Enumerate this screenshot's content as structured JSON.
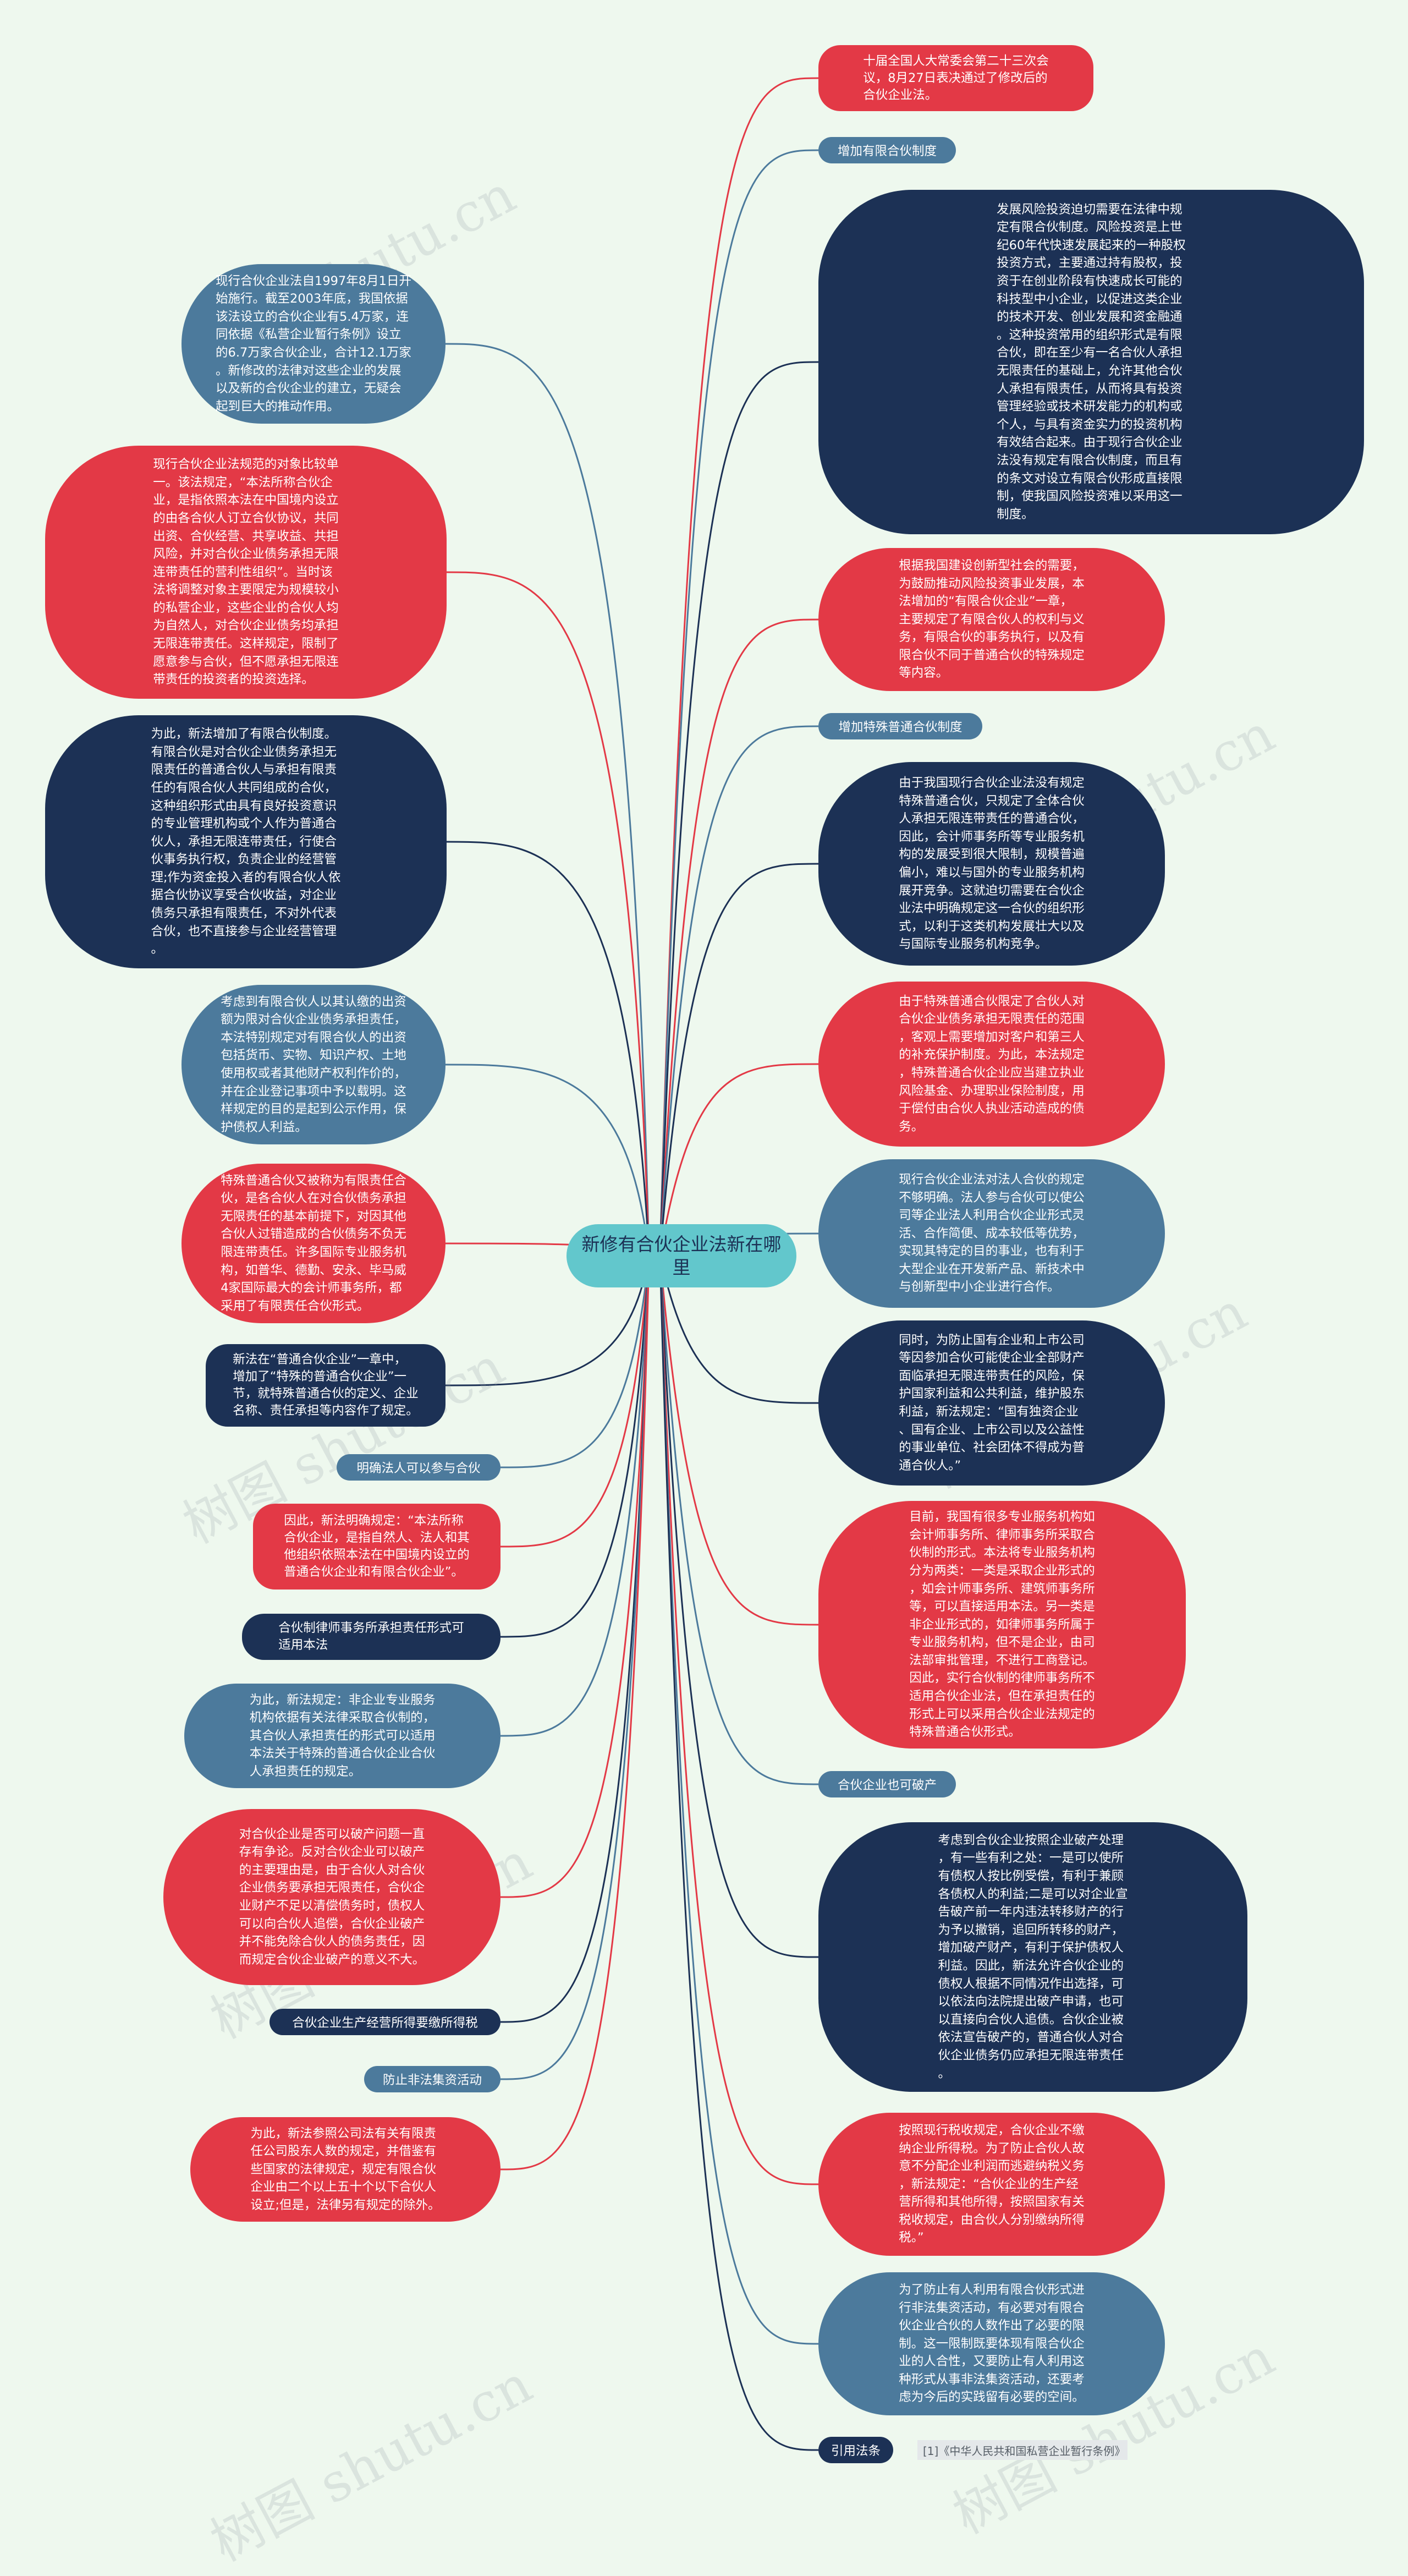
{
  "center": "新修有合伙企业法新在哪\n里",
  "watermark": "树图 shutu.cn",
  "right": [
    {
      "id": "r1",
      "style": "red",
      "text": "十届全国人大常委会第二十三次会\n议，8月27日表决通过了修改后的\n合伙企业法。"
    },
    {
      "id": "r2",
      "style": "tag-teal",
      "text": "增加有限合伙制度"
    },
    {
      "id": "r3",
      "style": "navy",
      "text": "发展风险投资迫切需要在法律中规\n定有限合伙制度。风险投资是上世\n纪60年代快速发展起来的一种股权\n投资方式，主要通过持有股权，投\n资于在创业阶段有快速成长可能的\n科技型中小企业，以促进这类企业\n的技术开发、创业发展和资金融通\n。这种投资常用的组织形式是有限\n合伙，即在至少有一名合伙人承担\n无限责任的基础上，允许其他合伙\n人承担有限责任，从而将具有投资\n管理经验或技术研发能力的机构或\n个人，与具有资金实力的投资机构\n有效结合起来。由于现行合伙企业\n法没有规定有限合伙制度，而且有\n的条文对设立有限合伙形成直接限\n制，使我国风险投资难以采用这一\n制度。"
    },
    {
      "id": "r4",
      "style": "red",
      "text": "根据我国建设创新型社会的需要，\n为鼓励推动风险投资事业发展，本\n法增加的“有限合伙企业”一章，\n主要规定了有限合伙人的权利与义\n务，有限合伙的事务执行，以及有\n限合伙不同于普通合伙的特殊规定\n等内容。"
    },
    {
      "id": "r5",
      "style": "tag-teal",
      "text": "增加特殊普通合伙制度"
    },
    {
      "id": "r6",
      "style": "navy",
      "text": "由于我国现行合伙企业法没有规定\n特殊普通合伙，只规定了全体合伙\n人承担无限连带责任的普通合伙，\n因此，会计师事务所等专业服务机\n构的发展受到很大限制，规模普遍\n偏小，难以与国外的专业服务机构\n展开竞争。这就迫切需要在合伙企\n业法中明确规定这一合伙的组织形\n式，以利于这类机构发展壮大以及\n与国际专业服务机构竞争。"
    },
    {
      "id": "r7",
      "style": "red",
      "text": "由于特殊普通合伙限定了合伙人对\n合伙企业债务承担无限责任的范围\n，客观上需要增加对客户和第三人\n的补充保护制度。为此，本法规定\n，特殊普通合伙企业应当建立执业\n风险基金、办理职业保险制度，用\n于偿付由合伙人执业活动造成的债\n务。"
    },
    {
      "id": "r8",
      "style": "teal",
      "text": "现行合伙企业法对法人合伙的规定\n不够明确。法人参与合伙可以使公\n司等企业法人利用合伙企业形式灵\n活、合作简便、成本较低等优势，\n实现其特定的目的事业，也有利于\n大型企业在开发新产品、新技术中\n与创新型中小企业进行合作。"
    },
    {
      "id": "r9",
      "style": "navy",
      "text": "同时，为防止国有企业和上市公司\n等因参加合伙可能使企业全部财产\n面临承担无限连带责任的风险，保\n护国家利益和公共利益，维护股东\n利益，新法规定：“国有独资企业\n、国有企业、上市公司以及公益性\n的事业单位、社会团体不得成为普\n通合伙人。”"
    },
    {
      "id": "r10",
      "style": "red",
      "text": "目前，我国有很多专业服务机构如\n会计师事务所、律师事务所采取合\n伙制的形式。本法将专业服务机构\n分为两类：一类是采取企业形式的\n，如会计师事务所、建筑师事务所\n等，可以直接适用本法。另一类是\n非企业形式的，如律师事务所属于\n专业服务机构，但不是企业，由司\n法部审批管理，不进行工商登记。\n因此，实行合伙制的律师事务所不\n适用合伙企业法，但在承担责任的\n形式上可以采用合伙企业法规定的\n特殊普通合伙形式。"
    },
    {
      "id": "r11",
      "style": "tag-teal",
      "text": "合伙企业也可破产"
    },
    {
      "id": "r12",
      "style": "navy",
      "text": "考虑到合伙企业按照企业破产处理\n，有一些有利之处：一是可以使所\n有债权人按比例受偿，有利于兼顾\n各债权人的利益;二是可以对企业宣\n告破产前一年内违法转移财产的行\n为予以撤销，追回所转移的财产，\n增加破产财产，有利于保护债权人\n利益。因此，新法允许合伙企业的\n债权人根据不同情况作出选择，可\n以依法向法院提出破产申请，也可\n以直接向合伙人追债。合伙企业被\n依法宣告破产的，普通合伙人对合\n伙企业债务仍应承担无限连带责任\n。"
    },
    {
      "id": "r13",
      "style": "red",
      "text": "按照现行税收规定，合伙企业不缴\n纳企业所得税。为了防止合伙人故\n意不分配企业利润而逃避纳税义务\n，新法规定：“合伙企业的生产经\n营所得和其他所得，按照国家有关\n税收规定，由合伙人分别缴纳所得\n税。”"
    },
    {
      "id": "r14",
      "style": "teal",
      "text": "为了防止有人利用有限合伙形式进\n行非法集资活动，有必要对有限合\n伙企业合伙的人数作出了必要的限\n制。这一限制既要体现有限合伙企\n业的人合性，又要防止有人利用这\n种形式从事非法集资活动，还要考\n虑为今后的实践留有必要的空间。"
    },
    {
      "id": "r15",
      "style": "tag-navy",
      "text": "引用法条"
    }
  ],
  "reference": "[1]《中华人民共和国私营企业暂行条例》",
  "left": [
    {
      "id": "l1",
      "style": "teal",
      "text": "现行合伙企业法自1997年8月1日开\n始施行。截至2003年底，我国依据\n该法设立的合伙企业有5.4万家，连\n同依据《私营企业暂行条例》设立\n的6.7万家合伙企业，合计12.1万家\n。新修改的法律对这些企业的发展\n以及新的合伙企业的建立，无疑会\n起到巨大的推动作用。"
    },
    {
      "id": "l2",
      "style": "red",
      "text": "现行合伙企业法规范的对象比较单\n一。该法规定，“本法所称合伙企\n业，是指依照本法在中国境内设立\n的由各合伙人订立合伙协议，共同\n出资、合伙经营、共享收益、共担\n风险，并对合伙企业债务承担无限\n连带责任的营利性组织”。当时该\n法将调整对象主要限定为规模较小\n的私营企业，这些企业的合伙人均\n为自然人，对合伙企业债务均承担\n无限连带责任。这样规定，限制了\n愿意参与合伙，但不愿承担无限连\n带责任的投资者的投资选择。"
    },
    {
      "id": "l3",
      "style": "navy",
      "text": "为此，新法增加了有限合伙制度。\n有限合伙是对合伙企业债务承担无\n限责任的普通合伙人与承担有限责\n任的有限合伙人共同组成的合伙，\n这种组织形式由具有良好投资意识\n的专业管理机构或个人作为普通合\n伙人，承担无限连带责任，行使合\n伙事务执行权，负责企业的经营管\n理;作为资金投入者的有限合伙人依\n据合伙协议享受合伙收益，对企业\n债务只承担有限责任，不对外代表\n合伙，也不直接参与企业经营管理\n。"
    },
    {
      "id": "l4",
      "style": "teal",
      "text": "考虑到有限合伙人以其认缴的出资\n额为限对合伙企业债务承担责任，\n本法特别规定对有限合伙人的出资\n包括货币、实物、知识产权、土地\n使用权或者其他财产权利作价的，\n并在企业登记事项中予以载明。这\n样规定的目的是起到公示作用，保\n护债权人利益。"
    },
    {
      "id": "l5",
      "style": "red",
      "text": "特殊普通合伙又被称为有限责任合\n伙，是各合伙人在对合伙债务承担\n无限责任的基本前提下，对因其他\n合伙人过错造成的合伙债务不负无\n限连带责任。许多国际专业服务机\n构，如普华、德勤、安永、毕马威\n4家国际最大的会计师事务所，都\n采用了有限责任合伙形式。"
    },
    {
      "id": "l6",
      "style": "navy",
      "text": "新法在“普通合伙企业”一章中，\n增加了“特殊的普通合伙企业”一\n节，就特殊普通合伙的定义、企业\n名称、责任承担等内容作了规定。"
    },
    {
      "id": "l7",
      "style": "tag-teal",
      "text": "明确法人可以参与合伙"
    },
    {
      "id": "l8",
      "style": "red",
      "text": "因此，新法明确规定：“本法所称\n合伙企业，是指自然人、法人和其\n他组织依照本法在中国境内设立的\n普通合伙企业和有限合伙企业”。"
    },
    {
      "id": "l9",
      "style": "navy",
      "text": "合伙制律师事务所承担责任形式可\n适用本法"
    },
    {
      "id": "l10",
      "style": "teal",
      "text": "为此，新法规定：非企业专业服务\n机构依据有关法律采取合伙制的，\n其合伙人承担责任的形式可以适用\n本法关于特殊的普通合伙企业合伙\n人承担责任的规定。"
    },
    {
      "id": "l11",
      "style": "red",
      "text": "对合伙企业是否可以破产问题一直\n存有争论。反对合伙企业可以破产\n的主要理由是，由于合伙人对合伙\n企业债务要承担无限责任，合伙企\n业财产不足以清偿债务时，债权人\n可以向合伙人追偿，合伙企业破产\n并不能免除合伙人的债务责任，因\n而规定合伙企业破产的意义不大。"
    },
    {
      "id": "l12",
      "style": "tag-navy",
      "text": "合伙企业生产经营所得要缴所得税"
    },
    {
      "id": "l13",
      "style": "tag-teal",
      "text": "防止非法集资活动"
    },
    {
      "id": "l14",
      "style": "red",
      "text": "为此，新法参照公司法有关有限责\n任公司股东人数的规定，并借鉴有\n些国家的法律规定，规定有限合伙\n企业由二个以上五十个以下合伙人\n设立;但是，法律另有规定的除外。"
    }
  ]
}
